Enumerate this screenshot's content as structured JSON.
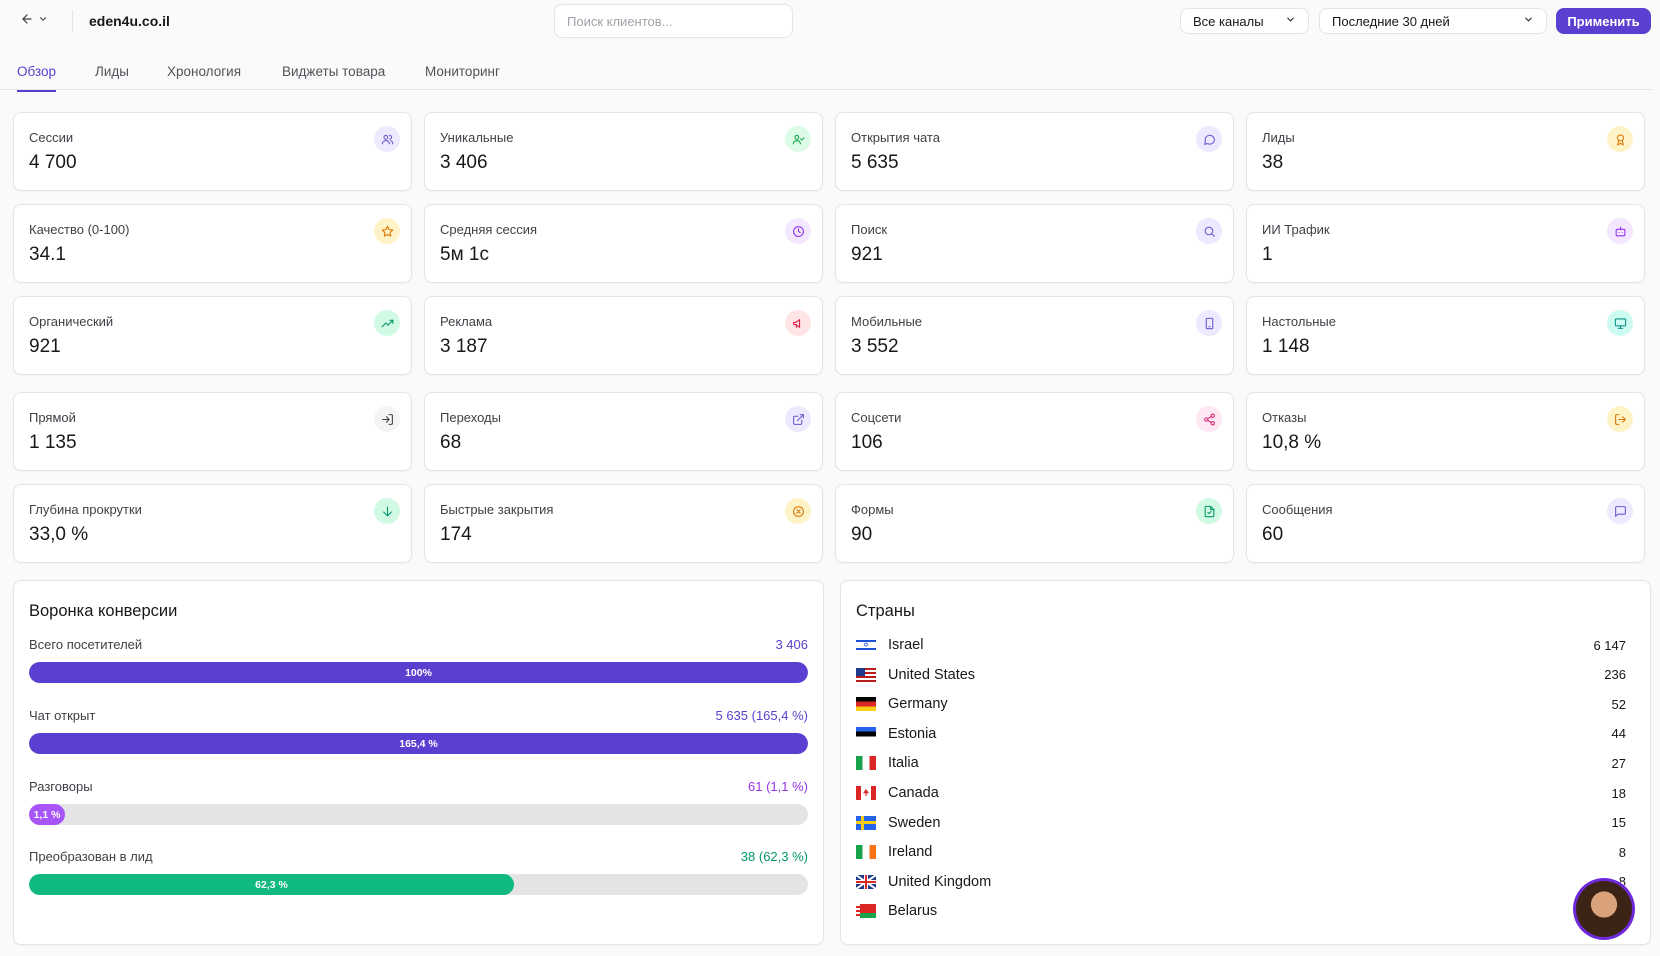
{
  "header": {
    "site": "eden4u.co.il",
    "search_placeholder": "Поиск клиентов...",
    "channel_select": "Все каналы",
    "period_select": "Последние 30 дней",
    "apply_label": "Применить"
  },
  "tabs": [
    {
      "label": "Обзор",
      "active": true
    },
    {
      "label": "Лиды",
      "active": false
    },
    {
      "label": "Хронология",
      "active": false
    },
    {
      "label": "Виджеты товара",
      "active": false
    },
    {
      "label": "Мониторинг",
      "active": false
    }
  ],
  "stats": [
    {
      "label": "Сессии",
      "value": "4 700",
      "icon": "users-icon",
      "color": "#6d5bd0",
      "bg": "#ede9fe"
    },
    {
      "label": "Уникальные",
      "value": "3 406",
      "icon": "user-check-icon",
      "color": "#16a34a",
      "bg": "#dcfce7"
    },
    {
      "label": "Открытия чата",
      "value": "5 635",
      "icon": "chat-bubble-icon",
      "color": "#6d5bd0",
      "bg": "#ede9fe"
    },
    {
      "label": "Лиды",
      "value": "38",
      "icon": "award-icon",
      "color": "#d97706",
      "bg": "#fef3c7"
    },
    {
      "label": "Качество (0-100)",
      "value": "34.1",
      "icon": "star-icon",
      "color": "#d97706",
      "bg": "#fef3c7"
    },
    {
      "label": "Средняя сессия",
      "value": "5м 1с",
      "icon": "clock-icon",
      "color": "#9333ea",
      "bg": "#f3e8ff"
    },
    {
      "label": "Поиск",
      "value": "921",
      "icon": "search-icon",
      "color": "#6d5bd0",
      "bg": "#ede9fe"
    },
    {
      "label": "ИИ Трафик",
      "value": "1",
      "icon": "bot-icon",
      "color": "#9333ea",
      "bg": "#f3e8ff"
    },
    {
      "label": "Органический",
      "value": "921",
      "icon": "trending-up-icon",
      "color": "#059669",
      "bg": "#d1fae5"
    },
    {
      "label": "Реклама",
      "value": "3 187",
      "icon": "megaphone-icon",
      "color": "#e11d48",
      "bg": "#ffe4e6"
    },
    {
      "label": "Мобильные",
      "value": "3 552",
      "icon": "smartphone-icon",
      "color": "#6d5bd0",
      "bg": "#ede9fe"
    },
    {
      "label": "Настольные",
      "value": "1 148",
      "icon": "monitor-icon",
      "color": "#0d9488",
      "bg": "#ccfbf1"
    },
    {
      "label": "Прямой",
      "value": "1 135",
      "icon": "log-in-icon",
      "color": "#3f3f46",
      "bg": "#f4f4f5"
    },
    {
      "label": "Переходы",
      "value": "68",
      "icon": "external-link-icon",
      "color": "#6d5bd0",
      "bg": "#ede9fe"
    },
    {
      "label": "Соцсети",
      "value": "106",
      "icon": "share-icon",
      "color": "#db2777",
      "bg": "#fce7f3"
    },
    {
      "label": "Отказы",
      "value": "10,8 %",
      "icon": "log-out-icon",
      "color": "#d97706",
      "bg": "#fef3c7"
    },
    {
      "label": "Глубина прокрутки",
      "value": "33,0 %",
      "icon": "arrow-down-icon",
      "color": "#059669",
      "bg": "#d1fae5"
    },
    {
      "label": "Быстрые закрытия",
      "value": "174",
      "icon": "x-circle-icon",
      "color": "#d97706",
      "bg": "#fef3c7"
    },
    {
      "label": "Формы",
      "value": "90",
      "icon": "file-icon",
      "color": "#059669",
      "bg": "#d1fae5"
    },
    {
      "label": "Сообщения",
      "value": "60",
      "icon": "message-square-icon",
      "color": "#6d5bd0",
      "bg": "#ede9fe"
    }
  ],
  "funnel": {
    "title": "Воронка конверсии",
    "steps": [
      {
        "label": "Всего посетителей",
        "value": "3 406",
        "bar_label": "100%",
        "fraction": 1.0,
        "color": "#5b3fd0",
        "value_color": "#5b3fd0"
      },
      {
        "label": "Чат открыт",
        "value": "5 635 (165,4 %)",
        "bar_label": "165,4 %",
        "fraction": 1.0,
        "color": "#5b3fd0",
        "value_color": "#5b3fd0"
      },
      {
        "label": "Разговоры",
        "value": "61 (1,1 %)",
        "bar_label": "1,1 %",
        "fraction": 0.011,
        "color": "#a855f7",
        "value_color": "#9333ea"
      },
      {
        "label": "Преобразован в лид",
        "value": "38 (62,3 %)",
        "bar_label": "62,3 %",
        "fraction": 0.623,
        "color": "#10b981",
        "value_color": "#059669"
      }
    ]
  },
  "countries": {
    "title": "Страны",
    "items": [
      {
        "name": "Israel",
        "count": "6 147",
        "flag": "il"
      },
      {
        "name": "United States",
        "count": "236",
        "flag": "us"
      },
      {
        "name": "Germany",
        "count": "52",
        "flag": "de"
      },
      {
        "name": "Estonia",
        "count": "44",
        "flag": "ee"
      },
      {
        "name": "Italia",
        "count": "27",
        "flag": "it"
      },
      {
        "name": "Canada",
        "count": "18",
        "flag": "ca"
      },
      {
        "name": "Sweden",
        "count": "15",
        "flag": "se"
      },
      {
        "name": "Ireland",
        "count": "8",
        "flag": "ie"
      },
      {
        "name": "United Kingdom",
        "count": "8",
        "flag": "gb"
      },
      {
        "name": "Belarus",
        "count": "",
        "flag": "by"
      }
    ]
  }
}
